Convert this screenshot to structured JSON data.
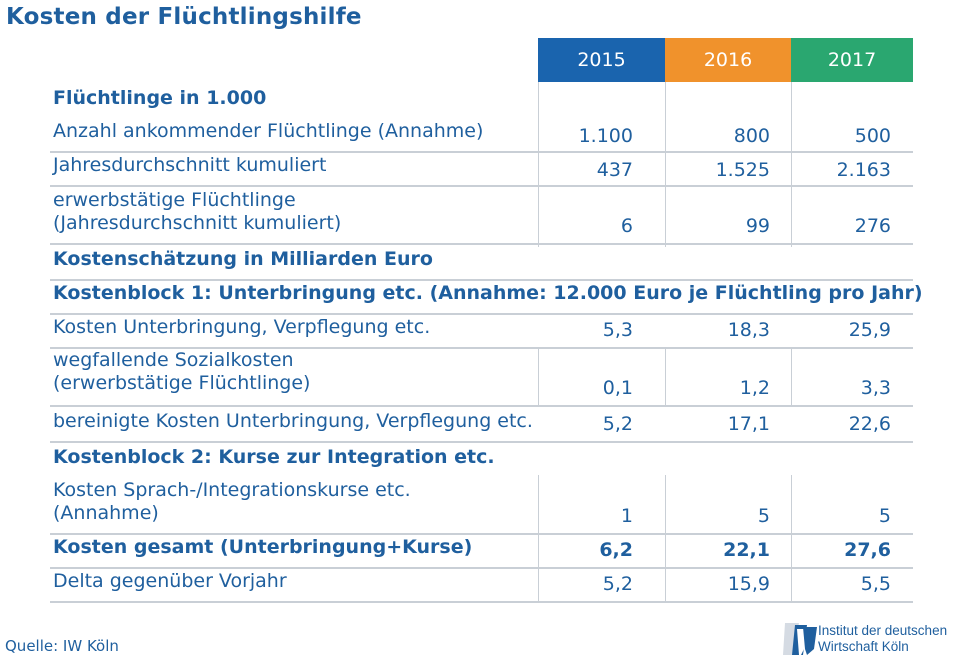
{
  "title": "Kosten der Flüchtlingshilfe",
  "years": [
    "2015",
    "2016",
    "2017"
  ],
  "colors": {
    "text": "#1f5f9e",
    "y2015": "#1a64ae",
    "y2016": "#f0922c",
    "y2017": "#2aa770",
    "grid": "#c9cfd6"
  },
  "rows": [
    {
      "label": [
        "Flüchtlinge in 1.000"
      ],
      "bold": true,
      "values": [
        "",
        "",
        ""
      ]
    },
    {
      "label": [
        "Anzahl ankommender Flüchtlinge (Annahme)"
      ],
      "bold": false,
      "values": [
        "1.100",
        "800",
        "500"
      ]
    },
    {
      "label": [
        "Jahresdurchschnitt kumuliert"
      ],
      "bold": false,
      "values": [
        "437",
        "1.525",
        "2.163"
      ]
    },
    {
      "label": [
        "erwerbstätige Flüchtlinge",
        "(Jahresdurchschnitt kumuliert)"
      ],
      "bold": false,
      "values": [
        "6",
        "99",
        "276"
      ]
    },
    {
      "label": [
        "Kostenschätzung in Milliarden Euro"
      ],
      "bold": true,
      "values": [
        "",
        "",
        ""
      ]
    },
    {
      "label": [
        "Kostenblock 1: Unterbringung etc. (Annahme: 12.000 Euro je Flüchtling pro Jahr)"
      ],
      "bold": true,
      "values": [
        "",
        "",
        ""
      ]
    },
    {
      "label": [
        "Kosten Unterbringung, Verpflegung etc."
      ],
      "bold": false,
      "values": [
        "5,3",
        "18,3",
        "25,9"
      ]
    },
    {
      "label": [
        "wegfallende Sozialkosten",
        "(erwerbstätige Flüchtlinge)"
      ],
      "bold": false,
      "values": [
        "0,1",
        "1,2",
        "3,3"
      ]
    },
    {
      "label": [
        "bereinigte Kosten Unterbringung, Verpflegung etc."
      ],
      "bold": false,
      "values": [
        "5,2",
        "17,1",
        "22,6"
      ]
    },
    {
      "label": [
        "Kostenblock 2: Kurse zur Integration etc."
      ],
      "bold": true,
      "values": [
        "",
        "",
        ""
      ]
    },
    {
      "label": [
        "Kosten Sprach-/Integrationskurse etc.",
        "(Annahme)"
      ],
      "bold": false,
      "values": [
        "1",
        "5",
        "5"
      ]
    },
    {
      "label": [
        "Kosten gesamt (Unterbringung+Kurse)"
      ],
      "bold": true,
      "values": [
        "6,2",
        "22,1",
        "27,6"
      ]
    },
    {
      "label": [
        "Delta gegenüber Vorjahr"
      ],
      "bold": false,
      "values": [
        "5,2",
        "15,9",
        "5,5"
      ]
    }
  ],
  "chart_data": {
    "type": "table",
    "title": "Kosten der Flüchtlingshilfe",
    "columns": [
      "2015",
      "2016",
      "2017"
    ],
    "rows": [
      {
        "label": "Anzahl ankommender Flüchtlinge (Annahme)",
        "values": [
          1100,
          800,
          500
        ]
      },
      {
        "label": "Jahresdurchschnitt kumuliert",
        "values": [
          437,
          1525,
          2163
        ]
      },
      {
        "label": "erwerbstätige Flüchtlinge (Jahresdurchschnitt kumuliert)",
        "values": [
          6,
          99,
          276
        ]
      },
      {
        "label": "Kosten Unterbringung, Verpflegung etc.",
        "values": [
          5.3,
          18.3,
          25.9
        ]
      },
      {
        "label": "wegfallende Sozialkosten (erwerbstätige Flüchtlinge)",
        "values": [
          0.1,
          1.2,
          3.3
        ]
      },
      {
        "label": "bereinigte Kosten Unterbringung, Verpflegung etc.",
        "values": [
          5.2,
          17.1,
          22.6
        ]
      },
      {
        "label": "Kosten Sprach-/Integrationskurse etc. (Annahme)",
        "values": [
          1,
          5,
          5
        ]
      },
      {
        "label": "Kosten gesamt (Unterbringung+Kurse)",
        "values": [
          6.2,
          22.1,
          27.6
        ]
      },
      {
        "label": "Delta gegenüber Vorjahr",
        "values": [
          5.2,
          15.9,
          5.5
        ]
      }
    ]
  },
  "source": "Quelle: IW Köln",
  "logo": {
    "line1": "Institut der deutschen",
    "line2": "Wirtschaft Köln"
  }
}
